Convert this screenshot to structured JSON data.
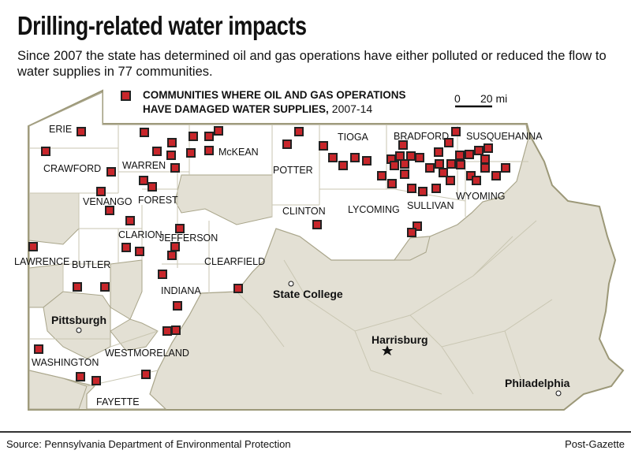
{
  "title": "Drilling-related water impacts",
  "subtitle": "Since 2007 the state has determined oil and gas operations have either polluted or reduced the flow to water supplies in 77 communities.",
  "legend": {
    "line1": "COMMUNITIES WHERE OIL AND GAS OPERATIONS",
    "line2_bold": "HAVE DAMAGED WATER SUPPLIES,",
    "line2_years": "2007-14",
    "marker_color": "#c8262b",
    "marker_icon": "red-square-marker"
  },
  "scale": {
    "zero": "0",
    "distance": "20 mi"
  },
  "colors": {
    "affected_county": "#ffffff",
    "other_county": "#e3e0d4",
    "border": "#a9a58a"
  },
  "counties": [
    "ERIE",
    "CRAWFORD",
    "WARREN",
    "McKEAN",
    "POTTER",
    "TIOGA",
    "BRADFORD",
    "SUSQUEHANNA",
    "VENANGO",
    "FOREST",
    "CLARION",
    "JEFFERSON",
    "LAWRENCE",
    "BUTLER",
    "CLEARFIELD",
    "CLINTON",
    "LYCOMING",
    "SULLIVAN",
    "WYOMING",
    "INDIANA",
    "WASHINGTON",
    "WESTMORELAND",
    "FAYETTE"
  ],
  "cities": {
    "pittsburgh": "Pittsburgh",
    "state_college": "State College",
    "harrisburg": "Harrisburg",
    "philadelphia": "Philadelphia"
  },
  "footer": {
    "source": "Source: Pennsylvania Department of Environmental Protection",
    "credit": "Post-Gazette"
  }
}
